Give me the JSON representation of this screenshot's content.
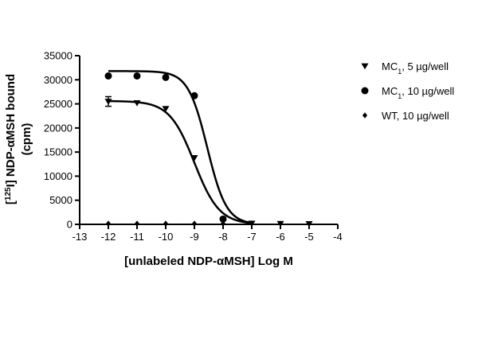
{
  "chart_data": {
    "type": "scatter",
    "title": "",
    "xlabel": "[unlabeled NDP-αMSH] Log M",
    "ylabel_line1": "[125I] NDP-αMSH bound",
    "ylabel_line2": "(cpm)",
    "xlim": [
      -13,
      -4
    ],
    "ylim": [
      0,
      35000
    ],
    "x_ticks": [
      -13,
      -12,
      -11,
      -10,
      -9,
      -8,
      -7,
      -6,
      -5,
      -4
    ],
    "y_ticks": [
      0,
      5000,
      10000,
      15000,
      20000,
      25000,
      30000,
      35000
    ],
    "grid": false,
    "legend_position": "right",
    "series": [
      {
        "name": "MC1, 5 µg/well",
        "marker": "triangle-down",
        "x": [
          -12,
          -11,
          -10,
          -9,
          -8,
          -7,
          -6,
          -5
        ],
        "y": [
          25500,
          25200,
          24000,
          13800,
          800,
          200,
          150,
          100
        ],
        "error": [
          1000,
          0,
          0,
          0,
          0,
          0,
          0,
          0
        ],
        "fit": {
          "top": 25600,
          "bottom": 0,
          "logEC50": -9.0,
          "hill": 1.0
        }
      },
      {
        "name": "MC1, 10 µg/well",
        "marker": "circle",
        "x": [
          -12,
          -11,
          -10,
          -9,
          -8
        ],
        "y": [
          30800,
          30800,
          30500,
          26700,
          1100
        ],
        "fit": {
          "top": 31800,
          "bottom": 0,
          "logEC50": -8.55,
          "hill": 1.3
        }
      },
      {
        "name": "WT, 10 µg/well",
        "marker": "diamond",
        "x": [
          -12,
          -11,
          -10,
          -9,
          -8
        ],
        "y": [
          150,
          150,
          150,
          150,
          150
        ]
      }
    ]
  }
}
